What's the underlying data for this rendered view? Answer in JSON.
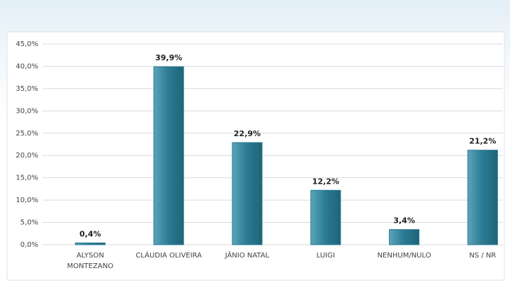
{
  "chart_data": {
    "type": "bar",
    "categories": [
      "ALYSON\nMONTEZANO",
      "CLÁUDIA OLIVEIRA",
      "JÂNIO NATAL",
      "LUIGI",
      "NENHUM/NULO",
      "NS / NR"
    ],
    "values": [
      0.4,
      39.9,
      22.9,
      12.2,
      3.4,
      21.2
    ],
    "value_labels": [
      "0,4%",
      "39,9%",
      "22,9%",
      "12,2%",
      "3,4%",
      "21,2%"
    ],
    "color": "#2b7a91",
    "ylim": [
      0,
      45
    ],
    "yticks": [
      {
        "value": 0,
        "label": "0,0%"
      },
      {
        "value": 5,
        "label": "5,0%"
      },
      {
        "value": 10,
        "label": "10,0%"
      },
      {
        "value": 15,
        "label": "15,0%"
      },
      {
        "value": 20,
        "label": "20,0%"
      },
      {
        "value": 25,
        "label": "25,0%"
      },
      {
        "value": 30,
        "label": "30,0%"
      },
      {
        "value": 35,
        "label": "35,0%"
      },
      {
        "value": 40,
        "label": "40,0%"
      },
      {
        "value": 45,
        "label": "45,0%"
      }
    ],
    "grid": true
  }
}
